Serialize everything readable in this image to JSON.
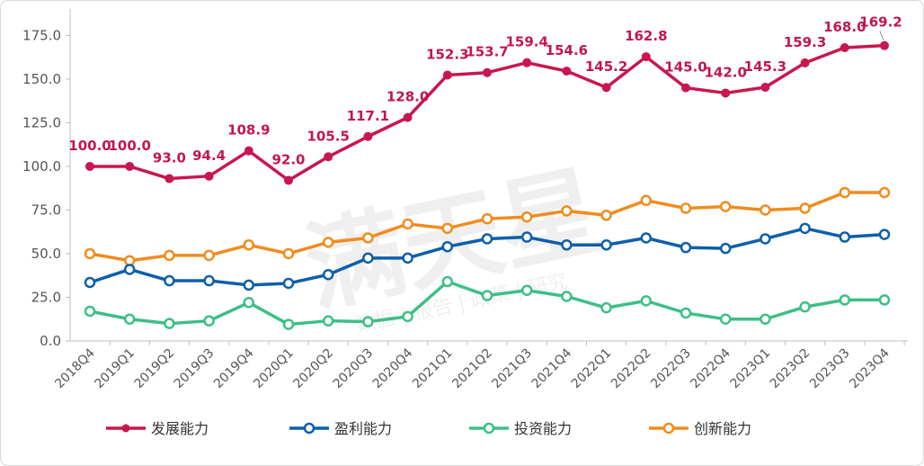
{
  "chart_data": {
    "type": "line",
    "categories": [
      "2018Q4",
      "2019Q1",
      "2019Q2",
      "2019Q3",
      "2019Q4",
      "2020Q1",
      "2020Q2",
      "2020Q3",
      "2020Q4",
      "2021Q1",
      "2021Q2",
      "2021Q3",
      "2021Q4",
      "2022Q1",
      "2022Q2",
      "2022Q3",
      "2022Q4",
      "2023Q1",
      "2023Q2",
      "2023Q3",
      "2023Q4"
    ],
    "ylim": [
      0,
      185
    ],
    "yticks": [
      "0.0",
      "25.0",
      "50.0",
      "75.0",
      "100.0",
      "125.0",
      "150.0",
      "175.0"
    ],
    "legend_position": "bottom",
    "grid": false,
    "series": [
      {
        "name": "发展能力",
        "color": "#C8174E",
        "marker": "filled",
        "labels_shown": true,
        "values": [
          100.0,
          100.0,
          93.0,
          94.4,
          108.9,
          92.0,
          105.5,
          117.1,
          128.0,
          152.3,
          153.7,
          159.4,
          154.6,
          145.2,
          162.8,
          145.0,
          142.0,
          145.3,
          159.3,
          168.0,
          169.2
        ],
        "labels": [
          "100.0",
          "100.0",
          "93.0",
          "94.4",
          "108.9",
          "92.0",
          "105.5",
          "117.1",
          "128.0",
          "152.3",
          "153.7",
          "159.4",
          "154.6",
          "145.2",
          "162.8",
          "145.0",
          "142.0",
          "145.3",
          "159.3",
          "168.0",
          "169.2"
        ]
      },
      {
        "name": "盈利能力",
        "color": "#0E5FA8",
        "marker": "hollow",
        "values": [
          33.5,
          41.0,
          34.5,
          34.5,
          32.0,
          33.0,
          38.0,
          47.5,
          47.5,
          54.0,
          58.5,
          59.5,
          55.0,
          55.0,
          59.0,
          53.5,
          53.0,
          58.5,
          64.5,
          59.5,
          61.0
        ]
      },
      {
        "name": "投资能力",
        "color": "#3DBF86",
        "marker": "hollow",
        "values": [
          17.0,
          12.5,
          10.0,
          11.5,
          22.0,
          9.5,
          11.5,
          11.0,
          14.0,
          34.0,
          26.0,
          29.0,
          25.5,
          19.0,
          23.0,
          16.0,
          12.5,
          12.5,
          19.5,
          23.5,
          23.5
        ]
      },
      {
        "name": "创新能力",
        "color": "#F08C1E",
        "marker": "hollow",
        "values": [
          50.0,
          46.0,
          49.0,
          49.0,
          55.0,
          50.0,
          56.5,
          59.0,
          67.0,
          64.5,
          70.0,
          71.0,
          74.5,
          72.0,
          80.5,
          76.0,
          77.0,
          75.0,
          76.0,
          85.0,
          85.0
        ]
      }
    ]
  },
  "watermark": {
    "main": "满天星",
    "sub": "数据 | 报告 | 政策 | 研究"
  }
}
